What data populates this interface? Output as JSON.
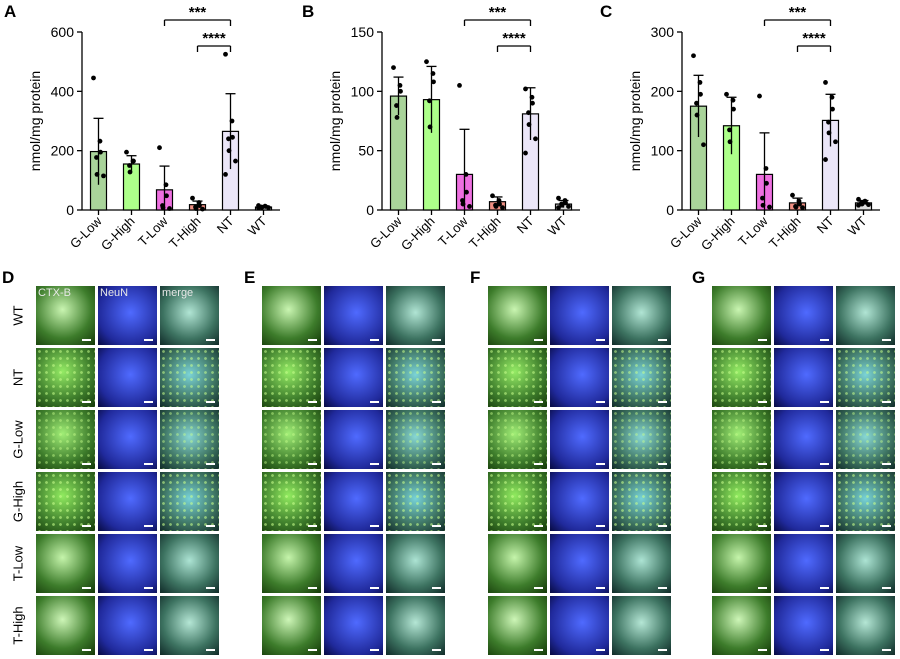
{
  "chart_data": [
    {
      "panel": "A",
      "type": "bar",
      "categories": [
        "G-Low",
        "G-High",
        "T-Low",
        "T-High",
        "NT",
        "WT"
      ],
      "values": [
        197,
        155,
        68,
        18,
        265,
        10
      ],
      "errors": [
        112,
        28,
        80,
        12,
        127,
        4
      ],
      "points": [
        [
          445,
          232,
          195,
          177,
          120,
          115
        ],
        [
          195,
          165,
          165,
          150,
          128
        ],
        [
          210,
          85,
          48,
          15,
          8,
          5
        ],
        [
          40,
          25,
          15,
          10,
          5,
          3
        ],
        [
          525,
          300,
          245,
          240,
          200,
          165,
          120
        ],
        [
          15,
          13,
          12,
          10,
          9,
          8,
          7
        ]
      ],
      "ylabel": "nmol/mg protein",
      "ylim": [
        0,
        600
      ],
      "yticks": [
        0,
        200,
        400,
        600
      ],
      "colors": [
        "#a9d49a",
        "#adff8a",
        "#ee6fe0",
        "#ef8f82",
        "#ebe6f8",
        "#dddddd"
      ],
      "annotations": [
        {
          "from": "T-Low",
          "to": "NT",
          "label": "***"
        },
        {
          "from": "T-High",
          "to": "NT",
          "label": "****"
        }
      ]
    },
    {
      "panel": "B",
      "type": "bar",
      "categories": [
        "G-Low",
        "G-High",
        "T-Low",
        "T-High",
        "NT",
        "WT"
      ],
      "values": [
        96,
        93,
        30,
        7,
        81,
        5
      ],
      "errors": [
        16,
        28,
        38,
        4,
        22,
        3
      ],
      "points": [
        [
          120,
          105,
          100,
          88,
          78
        ],
        [
          125,
          115,
          108,
          92,
          70
        ],
        [
          105,
          30,
          15,
          8,
          5,
          3
        ],
        [
          12,
          8,
          5,
          4,
          3,
          2
        ],
        [
          102,
          95,
          90,
          82,
          72,
          60,
          48
        ],
        [
          10,
          8,
          6,
          5,
          4,
          3,
          2
        ]
      ],
      "ylabel": "nmol/mg protein",
      "ylim": [
        0,
        150
      ],
      "yticks": [
        0,
        50,
        100,
        150
      ],
      "colors": [
        "#a9d49a",
        "#adff8a",
        "#ee6fe0",
        "#ef8f82",
        "#ebe6f8",
        "#dddddd"
      ],
      "annotations": [
        {
          "from": "T-Low",
          "to": "NT",
          "label": "***"
        },
        {
          "from": "T-High",
          "to": "NT",
          "label": "****"
        }
      ]
    },
    {
      "panel": "C",
      "type": "bar",
      "categories": [
        "G-Low",
        "G-High",
        "T-Low",
        "T-High",
        "NT",
        "WT"
      ],
      "values": [
        175,
        142,
        60,
        12,
        151,
        12
      ],
      "errors": [
        52,
        48,
        70,
        8,
        44,
        4
      ],
      "points": [
        [
          260,
          215,
          195,
          180,
          160,
          110
        ],
        [
          195,
          185,
          170,
          135,
          115
        ],
        [
          192,
          70,
          45,
          20,
          8,
          5
        ],
        [
          25,
          15,
          10,
          6,
          5,
          4
        ],
        [
          215,
          190,
          170,
          148,
          130,
          115,
          85
        ],
        [
          18,
          15,
          13,
          12,
          10,
          9,
          8
        ]
      ],
      "ylabel": "nmol/mg protein",
      "ylim": [
        0,
        300
      ],
      "yticks": [
        0,
        100,
        200,
        300
      ],
      "colors": [
        "#a9d49a",
        "#adff8a",
        "#ee6fe0",
        "#ef8f82",
        "#ebe6f8",
        "#dddddd"
      ],
      "annotations": [
        {
          "from": "T-Low",
          "to": "NT",
          "label": "***"
        },
        {
          "from": "T-High",
          "to": "NT",
          "label": "****"
        }
      ]
    }
  ],
  "micrographs": {
    "panels": [
      "D",
      "E",
      "F",
      "G"
    ],
    "channels": [
      "CTX-B",
      "NeuN",
      "merge"
    ],
    "rows": [
      "WT",
      "NT",
      "G-Low",
      "G-High",
      "T-Low",
      "T-High"
    ],
    "channel_colors": {
      "ctxb": "#3f9a1c",
      "neun": "#1f3bd0",
      "merge": "#3a7a9a"
    },
    "intensity": [
      0.25,
      0.9,
      0.75,
      0.95,
      0.3,
      0.2
    ]
  }
}
